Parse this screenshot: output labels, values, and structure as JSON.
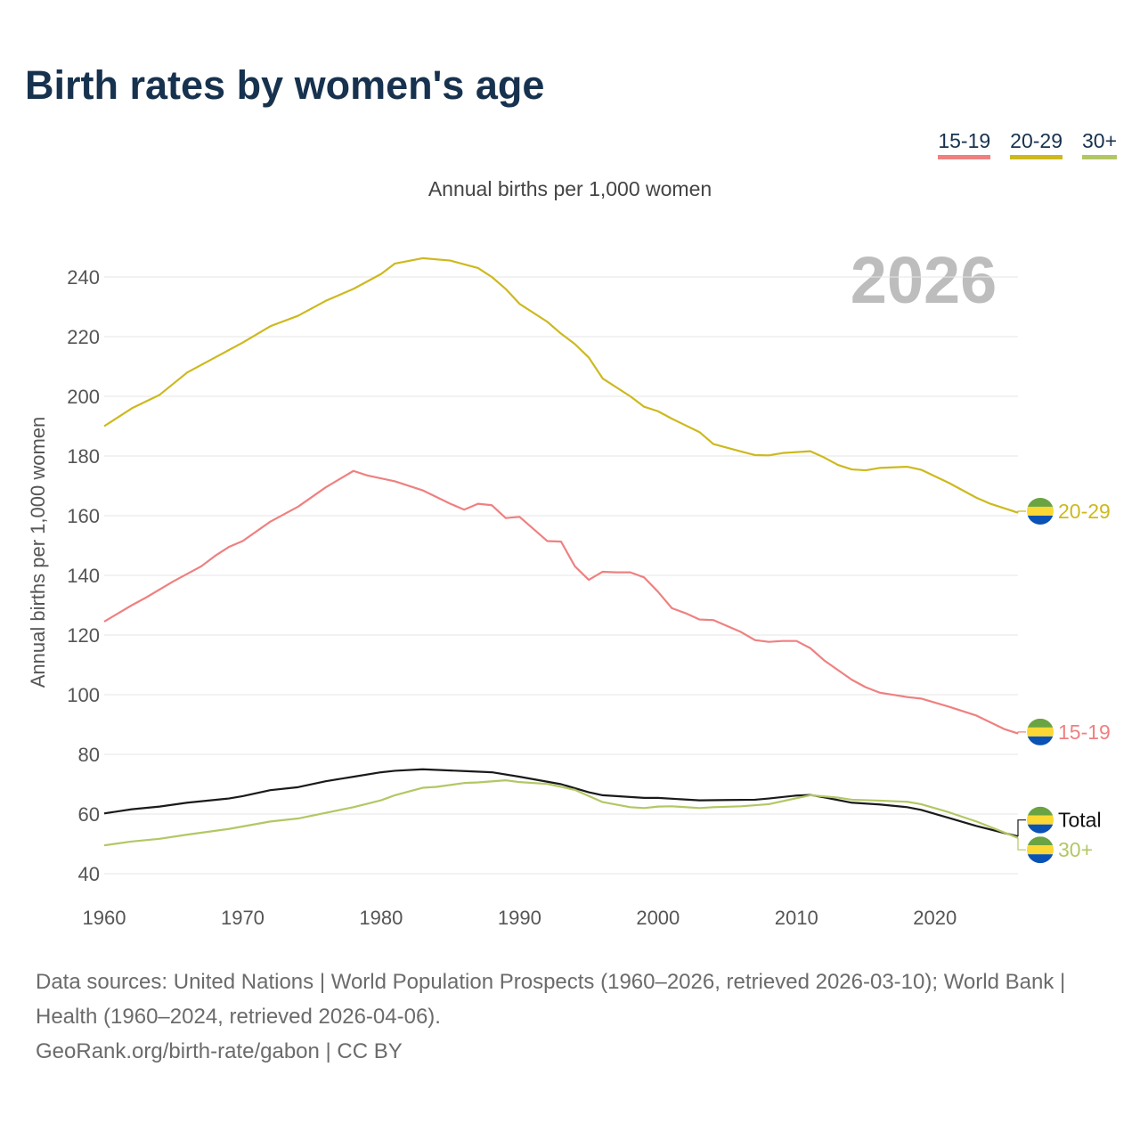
{
  "chart_data": {
    "type": "line",
    "title": "Birth rates by women's age",
    "subtitle": "Annual births per 1,000 women",
    "ylabel": "Annual births per 1,000 women",
    "xlabel": "",
    "year_watermark": "2026",
    "xlim": [
      1960,
      2026
    ],
    "ylim": [
      40,
      250
    ],
    "xticks": [
      1960,
      1970,
      1980,
      1990,
      2000,
      2010,
      2020
    ],
    "yticks": [
      40,
      60,
      80,
      100,
      120,
      140,
      160,
      180,
      200,
      220,
      240
    ],
    "grid": true,
    "legend": [
      "15-19",
      "20-29",
      "30+"
    ],
    "legend_placement": "top-right",
    "series": [
      {
        "name": "20-29",
        "color": "#cdb91e",
        "x": [
          1960,
          1962,
          1964,
          1966,
          1968,
          1970,
          1972,
          1974,
          1976,
          1978,
          1980,
          1981,
          1983,
          1985,
          1987,
          1988,
          1989,
          1990,
          1992,
          1993,
          1994,
          1995,
          1996,
          1998,
          1999,
          2000,
          2001,
          2003,
          2004,
          2006,
          2007,
          2008,
          2009,
          2011,
          2012,
          2013,
          2014,
          2015,
          2016,
          2018,
          2019,
          2021,
          2023,
          2024,
          2026
        ],
        "y": [
          190,
          196,
          200.5,
          208,
          213,
          218,
          223.5,
          227,
          232,
          236,
          241,
          244.5,
          246.3,
          245.5,
          243,
          240,
          236,
          231,
          225,
          221,
          217.5,
          213,
          206,
          200,
          196.5,
          195,
          192.5,
          188,
          184,
          181.5,
          180.3,
          180.2,
          181,
          181.6,
          179.5,
          177,
          175.5,
          175.2,
          176,
          176.4,
          175.4,
          171,
          166,
          164,
          161
        ]
      },
      {
        "name": "15-19",
        "color": "#ef8080",
        "x": [
          1960,
          1962,
          1963,
          1965,
          1967,
          1968,
          1969,
          1970,
          1972,
          1974,
          1976,
          1978,
          1979,
          1981,
          1983,
          1985,
          1986,
          1987,
          1988,
          1989,
          1990,
          1992,
          1993,
          1994,
          1995,
          1996,
          1997,
          1998,
          1999,
          2000,
          2001,
          2002,
          2003,
          2004,
          2006,
          2007,
          2008,
          2009,
          2010,
          2011,
          2012,
          2014,
          2015,
          2016,
          2018,
          2019,
          2021,
          2023,
          2025,
          2026
        ],
        "y": [
          124.5,
          130,
          132.5,
          138,
          143,
          146.5,
          149.5,
          151.5,
          158,
          163,
          169.5,
          175,
          173.5,
          171.5,
          168.5,
          164,
          162,
          164,
          163.5,
          159.2,
          159.6,
          151.5,
          151.3,
          143,
          138.5,
          141.2,
          141,
          141,
          139.3,
          134.5,
          129,
          127.3,
          125.2,
          125,
          121,
          118.3,
          117.7,
          118,
          118,
          115.6,
          111.5,
          105,
          102.5,
          100.7,
          99.2,
          98.7,
          96,
          93,
          88.5,
          87
        ]
      },
      {
        "name": "Total",
        "color": "#1a1a1a",
        "x": [
          1960,
          1962,
          1964,
          1966,
          1969,
          1970,
          1972,
          1974,
          1976,
          1978,
          1980,
          1981,
          1983,
          1986,
          1988,
          1990,
          1993,
          1995,
          1996,
          1999,
          2000,
          2003,
          2005,
          2007,
          2008,
          2010,
          2011,
          2012,
          2014,
          2016,
          2018,
          2019,
          2021,
          2023,
          2026
        ],
        "y": [
          60.2,
          61.6,
          62.5,
          63.8,
          65.2,
          66,
          68,
          69,
          71,
          72.5,
          74,
          74.5,
          75,
          74.4,
          74,
          72.5,
          70,
          67.3,
          66.3,
          65.4,
          65.4,
          64.6,
          64.7,
          64.8,
          65.2,
          66.2,
          66.4,
          65.6,
          63.8,
          63.2,
          62.3,
          61.4,
          58.7,
          56,
          52.5
        ]
      },
      {
        "name": "30+",
        "color": "#b2c764",
        "x": [
          1960,
          1962,
          1964,
          1966,
          1969,
          1972,
          1974,
          1976,
          1978,
          1980,
          1981,
          1983,
          1984,
          1986,
          1987,
          1989,
          1990,
          1992,
          1994,
          1996,
          1998,
          1999,
          2000,
          2001,
          2003,
          2004,
          2006,
          2008,
          2011,
          2013,
          2014,
          2016,
          2018,
          2019,
          2021,
          2023,
          2026
        ],
        "y": [
          49.5,
          50.8,
          51.7,
          53.1,
          55,
          57.5,
          58.5,
          60.4,
          62.3,
          64.6,
          66.3,
          68.8,
          69.1,
          70.4,
          70.6,
          71.3,
          70.7,
          70.1,
          68.1,
          64,
          62.3,
          62,
          62.5,
          62.6,
          62,
          62.3,
          62.6,
          63.3,
          66.3,
          65.5,
          64.8,
          64.5,
          64.1,
          63.3,
          60.6,
          57.5,
          52
        ]
      }
    ],
    "end_labels": [
      "20-29",
      "15-19",
      "Total",
      "30+"
    ]
  },
  "footer": {
    "sources": "Data sources: United Nations | World Population Prospects (1960–2026, retrieved 2026-03-10); World Bank | Health (1960–2024, retrieved 2026-04-06).",
    "credit": "GeoRank.org/birth-rate/gabon | CC BY"
  },
  "flag_colors": [
    "#6aa342",
    "#fcd835",
    "#0a52b3"
  ]
}
